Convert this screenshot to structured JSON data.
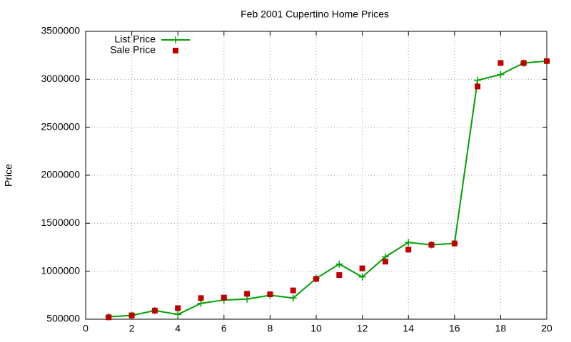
{
  "chart_data": {
    "type": "line",
    "title": "Feb 2001 Cupertino Home Prices",
    "y_label": "Price",
    "x": [
      1,
      2,
      3,
      4,
      5,
      6,
      7,
      8,
      9,
      10,
      11,
      12,
      13,
      14,
      15,
      16,
      17,
      18,
      19,
      20
    ],
    "series": [
      {
        "name": "List Price",
        "color": "#00a000",
        "style": "linespoints",
        "values": [
          525000,
          540000,
          590000,
          550000,
          665000,
          700000,
          710000,
          750000,
          720000,
          925000,
          1075000,
          940000,
          1150000,
          1300000,
          1275000,
          1290000,
          2990000,
          3050000,
          3170000,
          3190000
        ]
      },
      {
        "name": "Sale Price",
        "color": "#c00000",
        "style": "points",
        "values": [
          520000,
          540000,
          590000,
          615000,
          720000,
          725000,
          765000,
          760000,
          800000,
          920000,
          960000,
          1030000,
          1100000,
          1225000,
          1275000,
          1290000,
          2925000,
          3170000,
          3170000,
          3190000
        ]
      }
    ],
    "xlim": [
      0,
      20
    ],
    "xticks": [
      0,
      2,
      4,
      6,
      8,
      10,
      12,
      14,
      16,
      18,
      20
    ],
    "ylim": [
      500000,
      3500000
    ],
    "yticks": [
      500000,
      1000000,
      1500000,
      2000000,
      2500000,
      3000000,
      3500000
    ],
    "grid": true,
    "legend": "top-left"
  }
}
